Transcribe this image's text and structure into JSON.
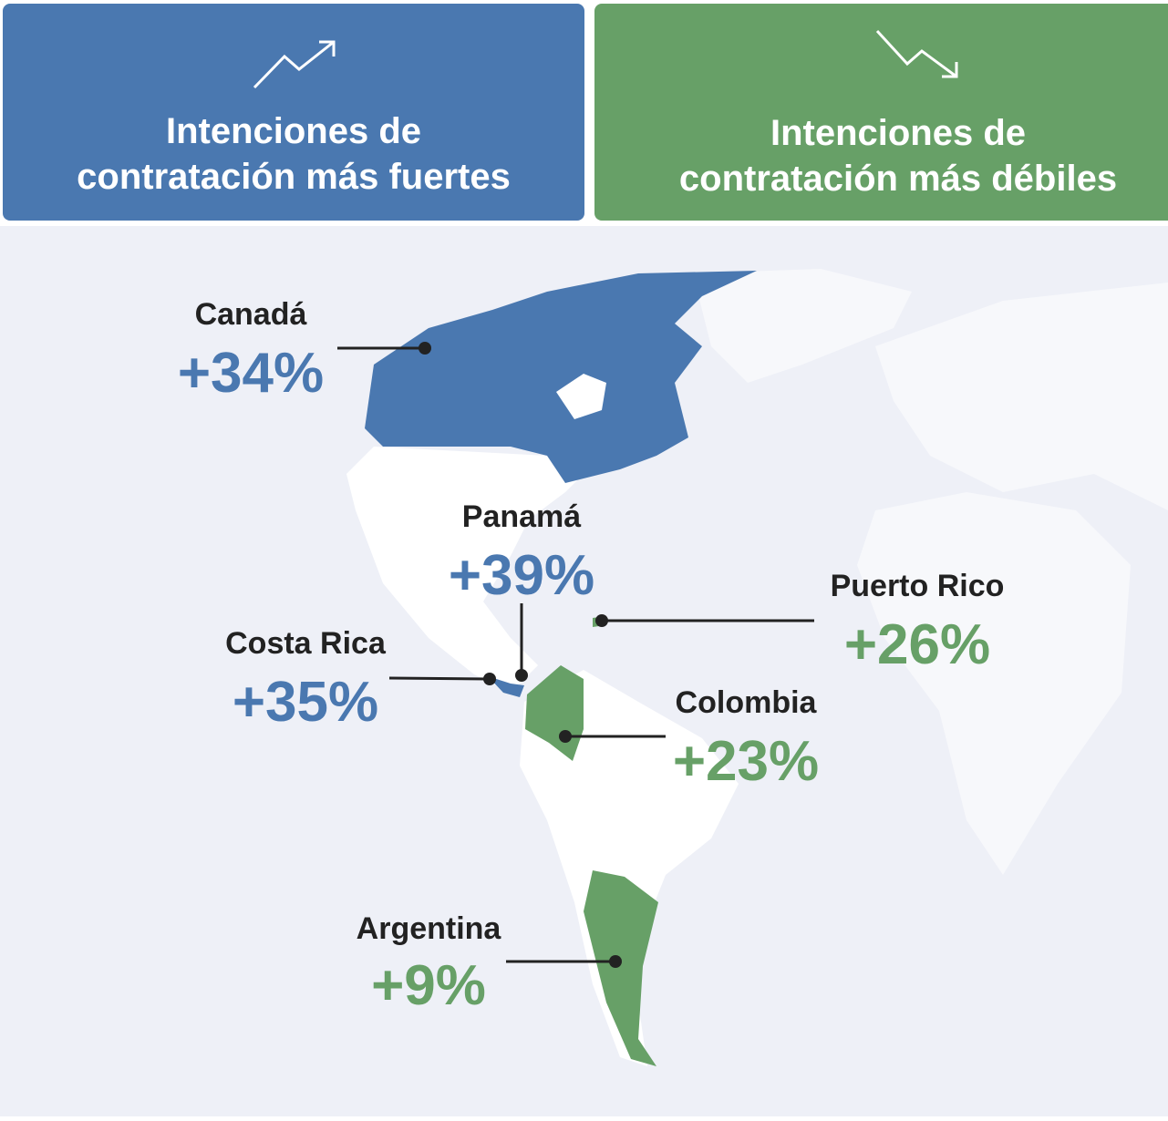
{
  "header": {
    "strong": {
      "title_lines": [
        "Intenciones de",
        "contratación más fuertes"
      ],
      "color": "#4a78b0"
    },
    "weak": {
      "title_lines": [
        "Intenciones de",
        "contratación más débiles"
      ],
      "color": "#67a067"
    }
  },
  "countries": [
    {
      "name": "Canadá",
      "value": "+34%",
      "color": "#4a78b0"
    },
    {
      "name": "Panamá",
      "value": "+39%",
      "color": "#4a78b0"
    },
    {
      "name": "Costa Rica",
      "value": "+35%",
      "color": "#4a78b0"
    },
    {
      "name": "Puerto Rico",
      "value": "+26%",
      "color": "#67a067"
    },
    {
      "name": "Colombia",
      "value": "+23%",
      "color": "#67a067"
    },
    {
      "name": "Argentina",
      "value": "+9%",
      "color": "#67a067"
    }
  ]
}
